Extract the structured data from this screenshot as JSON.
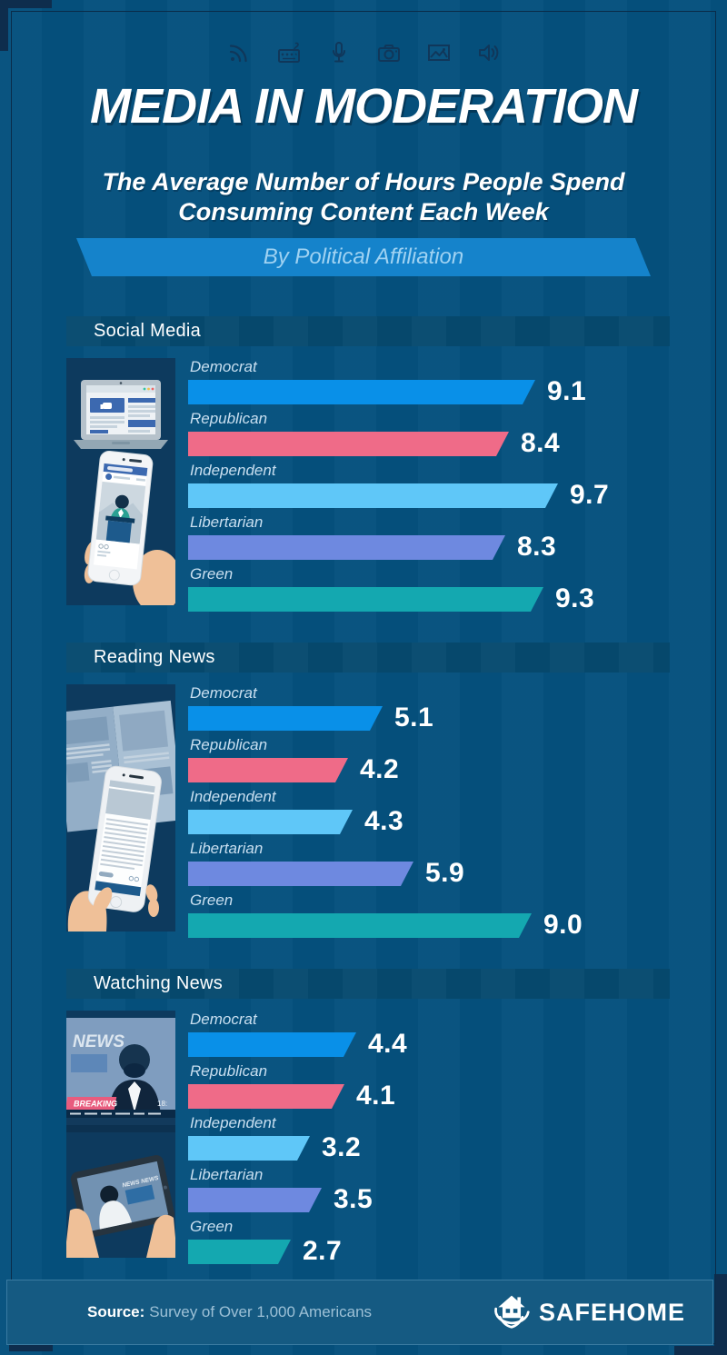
{
  "page": {
    "title": "MEDIA IN MODERATION",
    "subtitle_line1": "The Average Number of Hours People Spend",
    "subtitle_line2": "Consuming Content Each Week",
    "banner": "By Political Affiliation"
  },
  "header_icons": [
    "rss",
    "keyboard",
    "microphone",
    "camera",
    "image",
    "speaker"
  ],
  "colors": {
    "background": "#05517E",
    "banner": "#1583CB",
    "democrat": "#0990E8",
    "republican": "#EF6B88",
    "independent": "#5FC7F8",
    "libertarian": "#6E89E0",
    "green": "#14A8B0",
    "footer": "#155A82"
  },
  "sections": [
    {
      "title": "Social Media",
      "illustration": "social-media",
      "rows": [
        {
          "label": "Democrat",
          "value": 9.1,
          "display": "9.1",
          "color": "democrat"
        },
        {
          "label": "Republican",
          "value": 8.4,
          "display": "8.4",
          "color": "republican"
        },
        {
          "label": "Independent",
          "value": 9.7,
          "display": "9.7",
          "color": "independent"
        },
        {
          "label": "Libertarian",
          "value": 8.3,
          "display": "8.3",
          "color": "libertarian"
        },
        {
          "label": "Green",
          "value": 9.3,
          "display": "9.3",
          "color": "green"
        }
      ]
    },
    {
      "title": "Reading News",
      "illustration": "reading-news",
      "rows": [
        {
          "label": "Democrat",
          "value": 5.1,
          "display": "5.1",
          "color": "democrat"
        },
        {
          "label": "Republican",
          "value": 4.2,
          "display": "4.2",
          "color": "republican"
        },
        {
          "label": "Independent",
          "value": 4.3,
          "display": "4.3",
          "color": "independent"
        },
        {
          "label": "Libertarian",
          "value": 5.9,
          "display": "5.9",
          "color": "libertarian"
        },
        {
          "label": "Green",
          "value": 9.0,
          "display": "9.0",
          "color": "green"
        }
      ]
    },
    {
      "title": "Watching News",
      "illustration": "watching-news",
      "rows": [
        {
          "label": "Democrat",
          "value": 4.4,
          "display": "4.4",
          "color": "democrat"
        },
        {
          "label": "Republican",
          "value": 4.1,
          "display": "4.1",
          "color": "republican"
        },
        {
          "label": "Independent",
          "value": 3.2,
          "display": "3.2",
          "color": "independent"
        },
        {
          "label": "Libertarian",
          "value": 3.5,
          "display": "3.5",
          "color": "libertarian"
        },
        {
          "label": "Green",
          "value": 2.7,
          "display": "2.7",
          "color": "green"
        }
      ]
    }
  ],
  "illustrations": {
    "watching": {
      "news_label": "NEWS",
      "breaking_label": "BREAKING",
      "time_label": "18:",
      "tablet_label": "NEWS NEWS"
    }
  },
  "chart_data": {
    "type": "bar",
    "title": "Media in Moderation — The Average Number of Hours People Spend Consuming Content Each Week, By Political Affiliation",
    "categories": [
      "Democrat",
      "Republican",
      "Independent",
      "Libertarian",
      "Green"
    ],
    "series": [
      {
        "name": "Social Media",
        "values": [
          9.1,
          8.4,
          9.7,
          8.3,
          9.3
        ]
      },
      {
        "name": "Reading News",
        "values": [
          5.1,
          4.2,
          4.3,
          5.9,
          9.0
        ]
      },
      {
        "name": "Watching News",
        "values": [
          4.4,
          4.1,
          3.2,
          3.5,
          2.7
        ]
      }
    ],
    "unit": "hours per week",
    "xlabel": "",
    "ylabel": "Hours",
    "xlim": [
      0,
      10
    ],
    "grid": false,
    "legend_position": "none",
    "bar_orientation": "horizontal"
  },
  "footer": {
    "source_label": "Source:",
    "source_text": "Survey of Over 1,000 Americans",
    "brand": "SAFEHOME"
  }
}
